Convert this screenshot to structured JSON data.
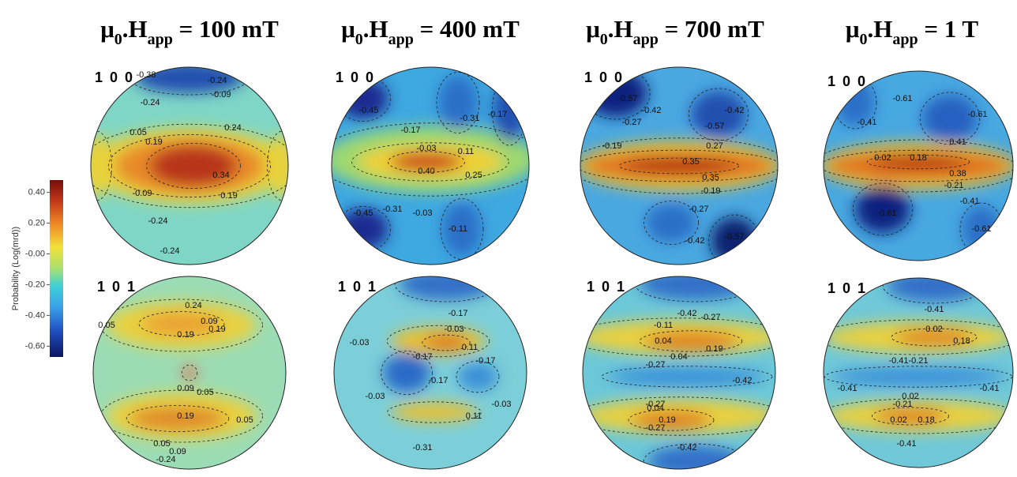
{
  "colorbar": {
    "label": "Probability (Log(mrd))",
    "lim": [
      -0.67,
      0.48
    ],
    "ticks": [
      {
        "value": 0.4,
        "label": "0.40"
      },
      {
        "value": 0.2,
        "label": "0.20"
      },
      {
        "value": 0,
        "label": "-0.00"
      },
      {
        "value": -0.2,
        "label": "-0.20"
      },
      {
        "value": -0.4,
        "label": "-0.40"
      },
      {
        "value": -0.6,
        "label": "-0.60"
      }
    ]
  },
  "columns": [
    {
      "title": {
        "mu": "μ",
        "mu_sub": "0",
        "h": ".H",
        "h_sub": "app",
        "value": " = 100 mT"
      },
      "panels": [
        {
          "row_label": "1 0 0",
          "contours": [
            "-0.38",
            "-0.24",
            "-0.09",
            "-0.24",
            "0.05",
            "0.19",
            "0.24",
            "0.34",
            "0.19",
            "-0.09",
            "-0.24",
            "-0.24"
          ]
        },
        {
          "row_label": "1 0 1",
          "contours": [
            "0.24",
            "0.09",
            "0.19",
            "0.19",
            "0.05",
            "0.09",
            "0.05",
            "0.19",
            "0.05",
            "0.09",
            "-0.24",
            "0.05"
          ]
        }
      ]
    },
    {
      "title": {
        "mu": "μ",
        "mu_sub": "0",
        "h": ".H",
        "h_sub": "app",
        "value": " = 400 mT"
      },
      "panels": [
        {
          "row_label": "1 0 0",
          "contours": [
            "-0.45",
            "-0.31",
            "-0.17",
            "-0.17",
            "-0.03",
            "0.11",
            "0.40",
            "0.25",
            "-0.31",
            "-0.45",
            "-0.03",
            "-0.11"
          ]
        },
        {
          "row_label": "1 0 1",
          "contours": [
            "-0.17",
            "-0.03",
            "-0.03",
            "0.11",
            "-0.17",
            "-0.17",
            "-0.17",
            "-0.03",
            "-0.03",
            "0.11",
            "-0.31"
          ]
        }
      ]
    },
    {
      "title": {
        "mu": "μ",
        "mu_sub": "0",
        "h": ".H",
        "h_sub": "app",
        "value": " = 700 mT"
      },
      "panels": [
        {
          "row_label": "1 0 0",
          "contours": [
            "-0.57",
            "-0.42",
            "-0.27",
            "-0.42",
            "-0.57",
            "-0.19",
            "0.27",
            "0.35",
            "0.35",
            "-0.19",
            "-0.27",
            "-0.42",
            "-0.57"
          ]
        },
        {
          "row_label": "1 0 1",
          "contours": [
            "-0.42",
            "-0.27",
            "-0.11",
            "0.04",
            "0.19",
            "0.04",
            "-0.27",
            "-0.42",
            "-0.27",
            "0.04",
            "0.19",
            "-0.27",
            "-0.42"
          ]
        }
      ]
    },
    {
      "title": {
        "mu": "μ",
        "mu_sub": "0",
        "h": ".H",
        "h_sub": "app",
        "value": " = 1 T"
      },
      "panels": [
        {
          "row_label": "1 0 0",
          "contours": [
            "-0.61",
            "-0.41",
            "-0.61",
            "0.41",
            "0.02",
            "0.18",
            "0.38",
            "-0.21",
            "-0.41",
            "-0.61",
            "-0.61"
          ]
        },
        {
          "row_label": "1 0 1",
          "contours": [
            "-0.41",
            "0.02",
            "0.18",
            "-0.41",
            "-0.21",
            "-0.41",
            "0.02",
            "-0.21",
            "-0.41",
            "0.02",
            "0.18",
            "-0.41"
          ]
        }
      ]
    }
  ]
}
